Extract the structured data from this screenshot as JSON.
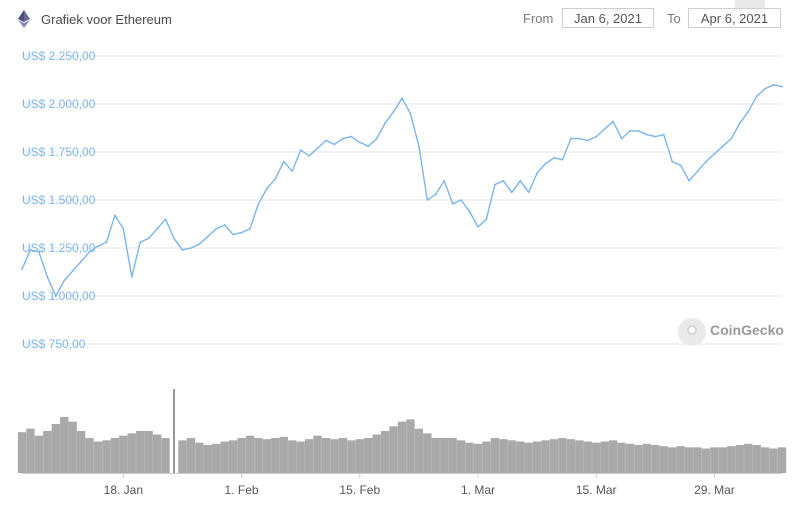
{
  "header": {
    "title": "Grafiek voor Ethereum",
    "from_label": "From",
    "from_value": "Jan 6, 2021",
    "to_label": "To",
    "to_value": "Apr 6, 2021"
  },
  "watermark": "CoinGecko",
  "colors": {
    "price_line": "#7cb5ec",
    "volume": "#8c8c8c",
    "grid": "#e6e6e6"
  },
  "icons": {
    "coin": "ethereum-diamond-icon",
    "watermark": "coingecko-logo-icon"
  },
  "chart_data": [
    {
      "type": "line",
      "title": "",
      "ylim": [
        750,
        2250
      ],
      "y_tick_values": [
        750,
        1000,
        1250,
        1500,
        1750,
        2000,
        2250
      ],
      "y_tick_labels": [
        "US$ 750,00",
        "US$ 1.000,00",
        "US$ 1.250,00",
        "US$ 1.500,00",
        "US$ 1.750,00",
        "US$ 2.000,00",
        "US$ 2.250,00"
      ],
      "x_ticks": [
        "18. Jan",
        "1. Feb",
        "15. Feb",
        "1. Mar",
        "15. Mar",
        "29. Mar"
      ],
      "x_tick_days": [
        12,
        26,
        40,
        54,
        68,
        82
      ],
      "grid": true,
      "series": [
        {
          "x": [
            0,
            1,
            2,
            3,
            4,
            5,
            6,
            7,
            8,
            9,
            10,
            11,
            12,
            13,
            14,
            15,
            16,
            17,
            18,
            19,
            20,
            21,
            22,
            23,
            24,
            25,
            26,
            27,
            28,
            29,
            30,
            31,
            32,
            33,
            34,
            35,
            36,
            37,
            38,
            39,
            40,
            41,
            42,
            43,
            44,
            45,
            46,
            47,
            48,
            49,
            50,
            51,
            52,
            53,
            54,
            55,
            56,
            57,
            58,
            59,
            60,
            61,
            62,
            63,
            64,
            65,
            66,
            67,
            68,
            69,
            70,
            71,
            72,
            73,
            74,
            75,
            76,
            77,
            78,
            79,
            80,
            81,
            82,
            83,
            84,
            85,
            86,
            87,
            88,
            89,
            90
          ],
          "values": [
            1140,
            1240,
            1230,
            1100,
            1000,
            1080,
            1130,
            1180,
            1230,
            1260,
            1280,
            1420,
            1350,
            1100,
            1280,
            1300,
            1350,
            1400,
            1300,
            1240,
            1250,
            1270,
            1310,
            1350,
            1370,
            1320,
            1330,
            1350,
            1480,
            1560,
            1610,
            1700,
            1650,
            1760,
            1730,
            1770,
            1810,
            1790,
            1820,
            1830,
            1800,
            1780,
            1820,
            1900,
            1960,
            2030,
            1950,
            1780,
            1500,
            1530,
            1600,
            1480,
            1500,
            1440,
            1360,
            1400,
            1580,
            1600,
            1540,
            1600,
            1540,
            1640,
            1690,
            1720,
            1710,
            1820,
            1820,
            1810,
            1830,
            1870,
            1910,
            1820,
            1860,
            1860,
            1840,
            1830,
            1840,
            1700,
            1680,
            1600,
            1650,
            1700,
            1740,
            1780,
            1820,
            1900,
            1960,
            2040,
            2080,
            2100,
            2090
          ]
        }
      ]
    },
    {
      "type": "bar",
      "title": "",
      "x": [
        0,
        1,
        2,
        3,
        4,
        5,
        6,
        7,
        8,
        9,
        10,
        11,
        12,
        13,
        14,
        15,
        16,
        17,
        18,
        19,
        20,
        21,
        22,
        23,
        24,
        25,
        26,
        27,
        28,
        29,
        30,
        31,
        32,
        33,
        34,
        35,
        36,
        37,
        38,
        39,
        40,
        41,
        42,
        43,
        44,
        45,
        46,
        47,
        48,
        49,
        50,
        51,
        52,
        53,
        54,
        55,
        56,
        57,
        58,
        59,
        60,
        61,
        62,
        63,
        64,
        65,
        66,
        67,
        68,
        69,
        70,
        71,
        72,
        73,
        74,
        75,
        76,
        77,
        78,
        79,
        80,
        81,
        82,
        83,
        84,
        85,
        86,
        87,
        88,
        89,
        90
      ],
      "values": [
        35,
        38,
        32,
        36,
        42,
        48,
        44,
        36,
        30,
        27,
        28,
        30,
        32,
        34,
        36,
        36,
        33,
        30,
        72,
        28,
        30,
        26,
        24,
        25,
        27,
        28,
        30,
        32,
        30,
        29,
        30,
        31,
        28,
        27,
        29,
        32,
        30,
        29,
        30,
        28,
        29,
        30,
        33,
        36,
        40,
        44,
        46,
        38,
        34,
        30,
        30,
        30,
        28,
        26,
        25,
        27,
        30,
        29,
        28,
        27,
        26,
        27,
        28,
        29,
        30,
        29,
        28,
        27,
        26,
        27,
        28,
        26,
        25,
        24,
        25,
        24,
        23,
        22,
        23,
        22,
        22,
        21,
        22,
        22,
        23,
        24,
        25,
        24,
        22,
        21,
        22
      ]
    }
  ]
}
